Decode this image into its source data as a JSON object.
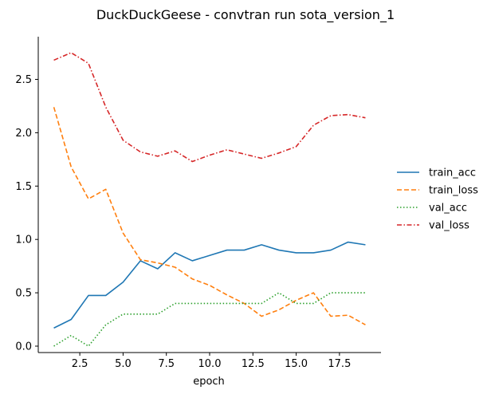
{
  "chart_data": {
    "type": "line",
    "title": "DuckDuckGeese - convtran run sota_version_1",
    "xlabel": "epoch",
    "ylabel": "",
    "xlim": [
      0.1,
      19.9
    ],
    "ylim": [
      -0.06,
      2.9
    ],
    "xticks": [
      2.5,
      5.0,
      7.5,
      10.0,
      12.5,
      15.0,
      17.5
    ],
    "xtick_labels": [
      "2.5",
      "5.0",
      "7.5",
      "10.0",
      "12.5",
      "15.0",
      "17.5"
    ],
    "yticks": [
      0.0,
      0.5,
      1.0,
      1.5,
      2.0,
      2.5
    ],
    "ytick_labels": [
      "0.0",
      "0.5",
      "1.0",
      "1.5",
      "2.0",
      "2.5"
    ],
    "grid": false,
    "legend_position": "right",
    "x": [
      1,
      2,
      3,
      4,
      5,
      6,
      7,
      8,
      9,
      10,
      11,
      12,
      13,
      14,
      15,
      16,
      17,
      18,
      19
    ],
    "series": [
      {
        "name": "train_acc",
        "color": "#1f77b4",
        "dash": "solid",
        "values": [
          0.17,
          0.25,
          0.475,
          0.475,
          0.6,
          0.8,
          0.725,
          0.875,
          0.8,
          0.85,
          0.9,
          0.9,
          0.95,
          0.9,
          0.875,
          0.875,
          0.9,
          0.975,
          0.95
        ]
      },
      {
        "name": "train_loss",
        "color": "#ff7f0e",
        "dash": "dashed",
        "values": [
          2.24,
          1.68,
          1.38,
          1.47,
          1.06,
          0.81,
          0.78,
          0.74,
          0.63,
          0.57,
          0.48,
          0.4,
          0.28,
          0.34,
          0.43,
          0.5,
          0.28,
          0.29,
          0.2
        ]
      },
      {
        "name": "val_acc",
        "color": "#2ca02c",
        "dash": "dotted",
        "values": [
          0.0,
          0.1,
          0.0,
          0.2,
          0.3,
          0.3,
          0.3,
          0.4,
          0.4,
          0.4,
          0.4,
          0.4,
          0.4,
          0.5,
          0.4,
          0.4,
          0.5,
          0.5,
          0.5
        ]
      },
      {
        "name": "val_loss",
        "color": "#d62728",
        "dash": "dashdot",
        "values": [
          2.68,
          2.75,
          2.65,
          2.24,
          1.93,
          1.82,
          1.78,
          1.83,
          1.73,
          1.79,
          1.84,
          1.8,
          1.76,
          1.81,
          1.87,
          2.07,
          2.16,
          2.17,
          2.14
        ]
      }
    ]
  }
}
